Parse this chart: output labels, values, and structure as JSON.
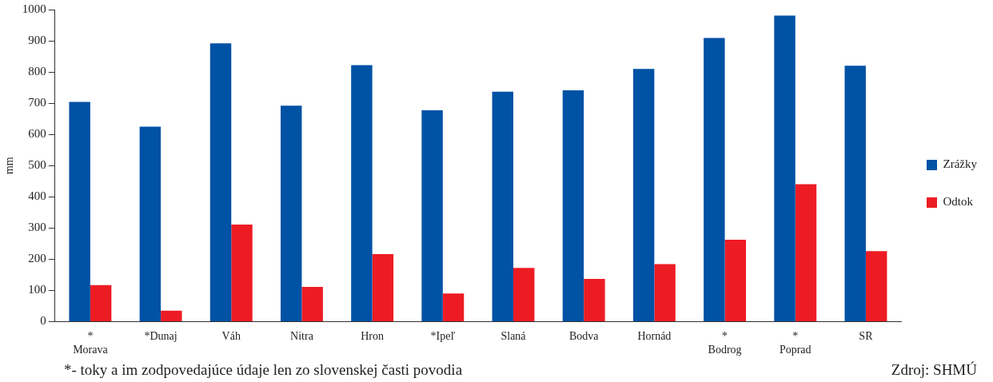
{
  "chart_data": {
    "type": "bar",
    "ylabel": "mm",
    "categories": [
      "* Morava",
      "*Dunaj",
      "Váh",
      "Nitra",
      "Hron",
      "*Ipeľ",
      "Slaná",
      "Bodva",
      "Hornád",
      "* Bodrog",
      "* Poprad",
      "SR"
    ],
    "series": [
      {
        "name": "Zrážky",
        "color": "#0052a5",
        "values": [
          704,
          625,
          892,
          692,
          822,
          677,
          737,
          741,
          810,
          909,
          981,
          820
        ]
      },
      {
        "name": "Odtok",
        "color": "#ed1c24",
        "values": [
          117,
          35,
          311,
          111,
          216,
          90,
          172,
          137,
          184,
          262,
          440,
          226
        ]
      }
    ],
    "ylim": [
      0,
      1000
    ],
    "yticks": [
      0,
      100,
      200,
      300,
      400,
      500,
      600,
      700,
      800,
      900,
      1000
    ],
    "grid": false,
    "legend": "right",
    "annotations": [
      "*- toky a im zodpovedajúce údaje len zo slovenskej časti povodia",
      "Zdroj: SHMÚ"
    ]
  }
}
